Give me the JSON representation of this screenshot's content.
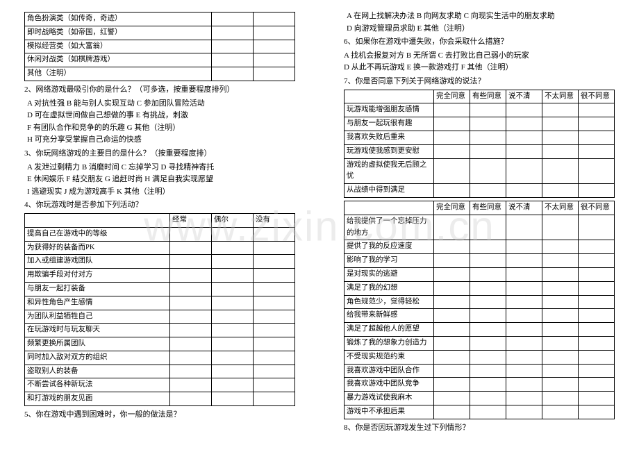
{
  "left": {
    "t1_rows": [
      "角色扮演类（如传奇，奇迹）",
      "即时战略类（如帝国，红警）",
      "模拟经营类（如大富翁）",
      "休闲对战类（如棋牌游戏）",
      "其他（注明）"
    ],
    "q2": "2、网络游戏最吸引你的是什么？（可多选，按重要程度排列）",
    "q2_lines": [
      "A 对抗性强   B 能与别人实现互动   C 参加团队冒险活动",
      "D 可在虚拟世间做自己想做的事   E 有挑战，刺激",
      "F 有团队合作和竞争的的乐趣    G 其他（注明）",
      "H 可充分享受掌握自己命运的快感"
    ],
    "q3": "3、你玩网络游戏的主要目的是什么？（按重要程度排）",
    "q3_lines": [
      "A 发泄过剩精力  B 消磨时间    C 忘掉学习   D 寻找精神寄托",
      "E 休闲娱乐  F 结交朋友   G 追赶时尚   H 满足自我实现愿望",
      "I 逃避现实   J 成为游戏高手   K 其他（注明）"
    ],
    "q4": "4、你玩游戏时是否参加下列活动？",
    "q4_cols": [
      "",
      "经常",
      "偶尔",
      "没有"
    ],
    "q4_rows": [
      "提高自己在游戏中的等级",
      "为获得好的装备而PK",
      "加入或组建游戏团队",
      "用欺骗手段对付对方",
      "与朋友一起打装备",
      "和异性角色产生感情",
      "为团队利益牺牲自己",
      "在玩游戏时与玩友聊天",
      "频繁更换所属团队",
      "同时加入敌对双方的组织",
      "盗取别人的装备",
      "不断尝试各种新玩法",
      "和打游戏的朋友见面"
    ],
    "q5": "5、你在游戏中遇到困难时，你一般的做法是？"
  },
  "right": {
    "q5_lines": [
      "A 在网上找解决办法   B 向网友求助   C 向现实生活中的朋友求助",
      "D 向游戏管理员求助  E 其他（注明）"
    ],
    "q6": "6、如果你在游戏中遭失败，你会采取什么措施？",
    "q6_lines": [
      " A 找机会报复对方   B 无所谓   C 去打败比自己弱小的玩家",
      " D 从此不再玩游戏   E 换一款游戏打   F 其他（注明）"
    ],
    "q7": "7、你是否同意下列关于网络游戏的说法？",
    "q7_cols": [
      "",
      "完全同意",
      "有些同意",
      "说不清",
      "不太同意",
      "很不同意"
    ],
    "q7_rows1": [
      "玩游戏能增强朋友感情",
      "与朋友一起玩很有趣",
      "我喜欢失败后重来",
      "玩游戏使我感到更安慰",
      "游戏的虚拟使我无后顾之忧",
      "从战绩中得到满足"
    ],
    "q7_rows2": [
      "给我提供了一个忘掉压力的地方",
      "提供了我的反应速度",
      "影响了我的学习",
      "是对现实的逃避",
      "满足了我的幻想",
      "角色规范少，觉得轻松",
      "给我带来新鲜感",
      "满足了超越他人的愿望",
      "锻炼了我的想象力创造力",
      "不受现实规范约束",
      "我喜欢游戏中团队合作",
      "我喜欢游戏中团队竞争",
      "暴力游戏试使我麻木",
      "游戏中不承担后果"
    ],
    "q8": "  8、你是否因玩游戏发生过下列情形？"
  },
  "watermark": "www.zixin.com.cn"
}
